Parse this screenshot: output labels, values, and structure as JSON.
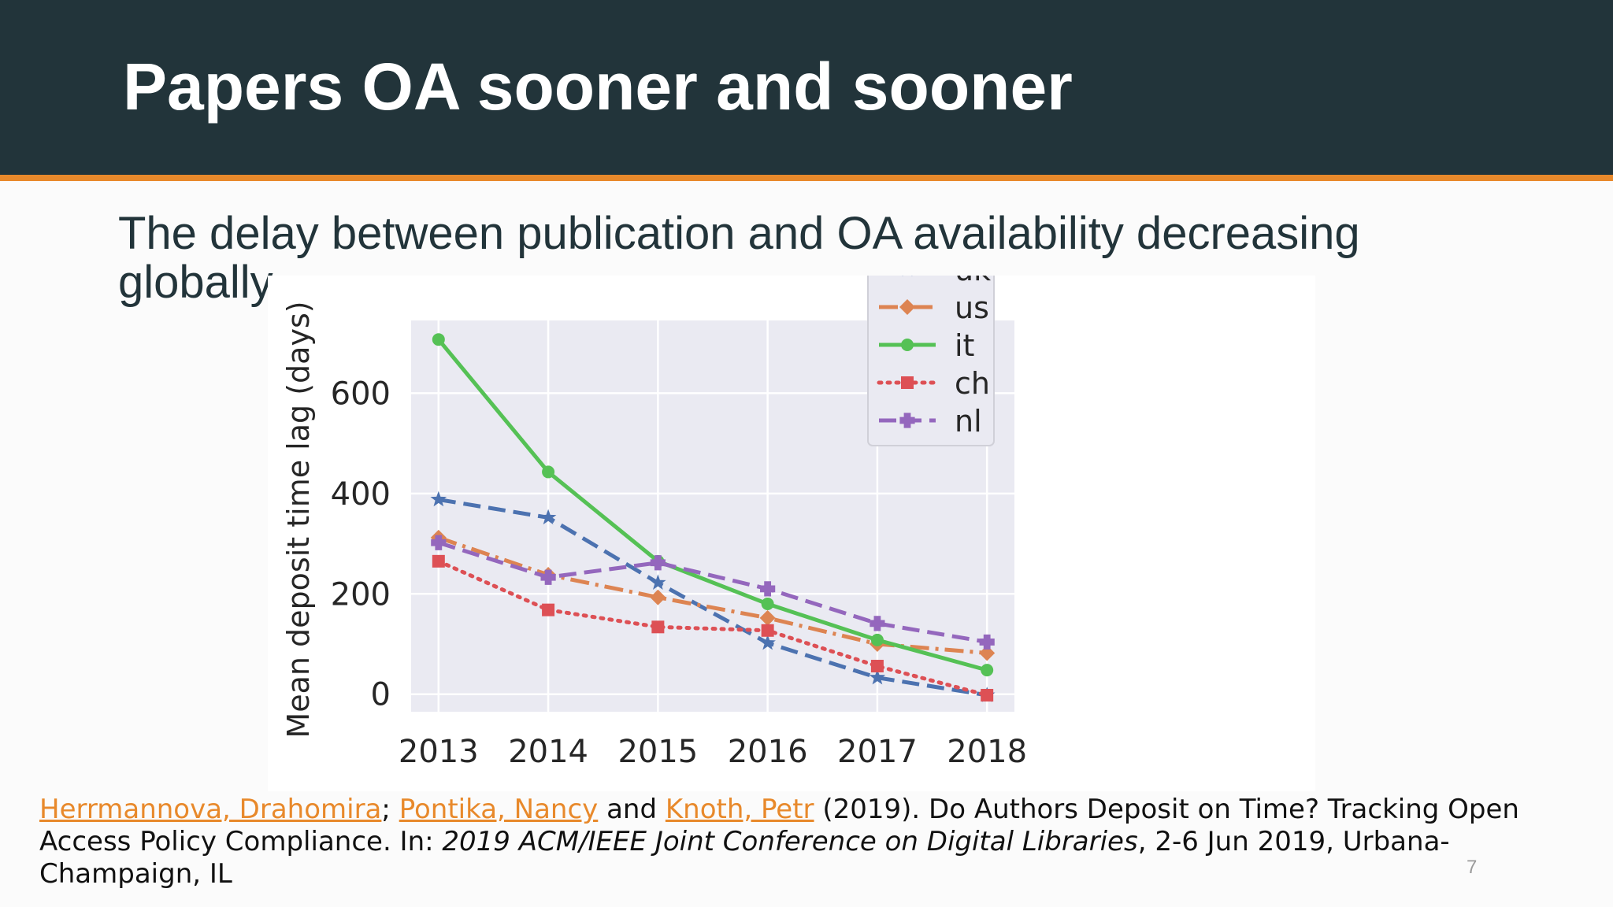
{
  "slide": {
    "title": "Papers OA sooner and sooner",
    "subtitle": "The delay between publication and OA availability decreasing globally",
    "page_number": "7"
  },
  "citation": {
    "author_1": "Herrmannova, Drahomira",
    "sep_1": ";",
    "author_2": "Pontika, Nancy",
    "sep_2": "and",
    "author_3": "Knoth, Petr",
    "year_title": "(2019). Do Authors Deposit on Time? Tracking Open Access Policy Compliance. In:",
    "venue": "2019 ACM/IEEE Joint Conference on Digital Libraries",
    "details": ", 2-6 Jun 2019, Urbana-Champaign, IL"
  },
  "colors": {
    "header_bg": "#22343a",
    "accent": "#e8892b",
    "plot_bg": "#eaeaf2"
  },
  "chart_data": {
    "type": "line",
    "title": "",
    "xlabel": "",
    "ylabel": "Mean deposit time lag (days)",
    "x": [
      2013,
      2014,
      2015,
      2016,
      2017,
      2018
    ],
    "xlim": [
      2012.75,
      2018.25
    ],
    "ylim": [
      -35,
      745
    ],
    "yticks": [
      0,
      200,
      400,
      600
    ],
    "grid": true,
    "legend_position": "top-right",
    "series": [
      {
        "name": "uk",
        "color": "#4c72b0",
        "marker": "star",
        "dash": "dashed",
        "values": [
          388,
          352,
          222,
          102,
          33,
          -2
        ]
      },
      {
        "name": "us",
        "color": "#dd8452",
        "marker": "diamond",
        "dash": "dashdot",
        "values": [
          312,
          238,
          193,
          152,
          100,
          82
        ]
      },
      {
        "name": "it",
        "color": "#55c155",
        "marker": "circle",
        "dash": "solid",
        "values": [
          707,
          443,
          265,
          180,
          108,
          48
        ]
      },
      {
        "name": "ch",
        "color": "#dd5055",
        "marker": "square",
        "dash": "dotted",
        "values": [
          265,
          168,
          134,
          127,
          56,
          -2
        ]
      },
      {
        "name": "nl",
        "color": "#9467bd",
        "marker": "plus",
        "dash": "dashed",
        "values": [
          302,
          233,
          262,
          210,
          141,
          104
        ]
      }
    ]
  }
}
